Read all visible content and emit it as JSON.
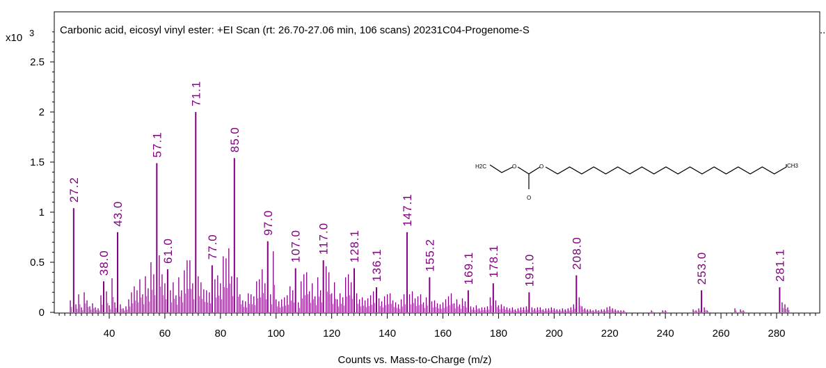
{
  "chart_data": {
    "type": "bar",
    "title": "Carbonic acid, eicosyl vinyl ester: +EI Scan (rt: 26.70-27.06 min, 106 scans) 20231C04-Progenome-S",
    "title_ellipsis": "..",
    "y_multiplier_base": "x10",
    "y_multiplier_exp": "3",
    "xlabel": "Counts vs. Mass-to-Charge (m/z)",
    "xlim": [
      20,
      295
    ],
    "ylim": [
      0,
      2.85
    ],
    "x_ticks": [
      40,
      60,
      80,
      100,
      120,
      140,
      160,
      180,
      200,
      220,
      240,
      260,
      280
    ],
    "x_tick_labels": [
      "40",
      "60",
      "80",
      "100",
      "120",
      "140",
      "160",
      "180",
      "200",
      "220",
      "240",
      "260",
      "280"
    ],
    "y_ticks": [
      0,
      0.5,
      1,
      1.5,
      2,
      2.5
    ],
    "y_tick_labels": [
      "0",
      "0.5",
      "1",
      "1.5",
      "2",
      "2.5"
    ],
    "bar_color": "#800080",
    "labeled_peaks": [
      {
        "mz": 27.2,
        "value": 1.04,
        "label": "27.2"
      },
      {
        "mz": 38.0,
        "value": 0.31,
        "label": "38.0"
      },
      {
        "mz": 43.0,
        "value": 0.8,
        "label": "43.0"
      },
      {
        "mz": 57.1,
        "value": 1.49,
        "label": "57.1"
      },
      {
        "mz": 61.0,
        "value": 0.43,
        "label": "61.0"
      },
      {
        "mz": 71.1,
        "value": 2.0,
        "label": "71.1"
      },
      {
        "mz": 77.0,
        "value": 0.47,
        "label": "77.0"
      },
      {
        "mz": 85.0,
        "value": 1.54,
        "label": "85.0"
      },
      {
        "mz": 97.0,
        "value": 0.71,
        "label": "97.0"
      },
      {
        "mz": 107.0,
        "value": 0.44,
        "label": "107.0"
      },
      {
        "mz": 117.0,
        "value": 0.52,
        "label": "117.0"
      },
      {
        "mz": 128.1,
        "value": 0.44,
        "label": "128.1"
      },
      {
        "mz": 136.1,
        "value": 0.25,
        "label": "136.1"
      },
      {
        "mz": 147.1,
        "value": 0.8,
        "label": "147.1"
      },
      {
        "mz": 155.2,
        "value": 0.35,
        "label": "155.2"
      },
      {
        "mz": 169.1,
        "value": 0.22,
        "label": "169.1"
      },
      {
        "mz": 178.1,
        "value": 0.29,
        "label": "178.1"
      },
      {
        "mz": 191.0,
        "value": 0.2,
        "label": "191.0"
      },
      {
        "mz": 208.0,
        "value": 0.37,
        "label": "208.0"
      },
      {
        "mz": 253.0,
        "value": 0.22,
        "label": "253.0"
      },
      {
        "mz": 281.1,
        "value": 0.25,
        "label": "281.1"
      }
    ],
    "minor_peaks": [
      [
        26,
        0.12
      ],
      [
        28,
        0.08
      ],
      [
        29,
        0.18
      ],
      [
        30,
        0.05
      ],
      [
        31,
        0.2
      ],
      [
        32,
        0.12
      ],
      [
        33,
        0.06
      ],
      [
        34,
        0.09
      ],
      [
        35,
        0.05
      ],
      [
        36,
        0.04
      ],
      [
        37,
        0.17
      ],
      [
        39,
        0.21
      ],
      [
        40,
        0.07
      ],
      [
        41,
        0.34
      ],
      [
        42,
        0.1
      ],
      [
        44,
        0.08
      ],
      [
        45,
        0.04
      ],
      [
        46,
        0.06
      ],
      [
        47,
        0.13
      ],
      [
        48,
        0.2
      ],
      [
        49,
        0.26
      ],
      [
        50,
        0.22
      ],
      [
        51,
        0.33
      ],
      [
        52,
        0.18
      ],
      [
        53,
        0.36
      ],
      [
        54,
        0.24
      ],
      [
        55,
        0.5
      ],
      [
        56,
        0.38
      ],
      [
        58,
        0.57
      ],
      [
        59,
        0.38
      ],
      [
        60,
        0.29
      ],
      [
        62,
        0.22
      ],
      [
        63,
        0.3
      ],
      [
        64,
        0.17
      ],
      [
        65,
        0.35
      ],
      [
        66,
        0.22
      ],
      [
        67,
        0.42
      ],
      [
        68,
        0.52
      ],
      [
        69,
        0.52
      ],
      [
        70,
        0.29
      ],
      [
        72,
        0.36
      ],
      [
        73,
        0.3
      ],
      [
        74,
        0.23
      ],
      [
        75,
        0.22
      ],
      [
        76,
        0.2
      ],
      [
        78,
        0.33
      ],
      [
        79,
        0.37
      ],
      [
        80,
        0.29
      ],
      [
        81,
        0.56
      ],
      [
        82,
        0.54
      ],
      [
        83,
        0.64
      ],
      [
        84,
        0.36
      ],
      [
        86,
        0.35
      ],
      [
        87,
        0.18
      ],
      [
        88,
        0.12
      ],
      [
        89,
        0.11
      ],
      [
        90,
        0.19
      ],
      [
        91,
        0.18
      ],
      [
        92,
        0.16
      ],
      [
        93,
        0.31
      ],
      [
        94,
        0.33
      ],
      [
        95,
        0.43
      ],
      [
        96,
        0.29
      ],
      [
        98,
        0.18
      ],
      [
        99,
        0.61
      ],
      [
        100,
        0.13
      ],
      [
        101,
        0.11
      ],
      [
        102,
        0.13
      ],
      [
        103,
        0.15
      ],
      [
        104,
        0.17
      ],
      [
        105,
        0.26
      ],
      [
        106,
        0.22
      ],
      [
        108,
        0.1
      ],
      [
        109,
        0.31
      ],
      [
        110,
        0.38
      ],
      [
        111,
        0.4
      ],
      [
        112,
        0.21
      ],
      [
        113,
        0.29
      ],
      [
        114,
        0.16
      ],
      [
        115,
        0.35
      ],
      [
        116,
        0.22
      ],
      [
        118,
        0.46
      ],
      [
        119,
        0.4
      ],
      [
        120,
        0.19
      ],
      [
        121,
        0.3
      ],
      [
        122,
        0.13
      ],
      [
        123,
        0.19
      ],
      [
        124,
        0.15
      ],
      [
        125,
        0.35
      ],
      [
        126,
        0.38
      ],
      [
        127,
        0.3
      ],
      [
        129,
        0.19
      ],
      [
        130,
        0.13
      ],
      [
        131,
        0.15
      ],
      [
        132,
        0.12
      ],
      [
        133,
        0.14
      ],
      [
        134,
        0.17
      ],
      [
        135,
        0.21
      ],
      [
        137,
        0.14
      ],
      [
        138,
        0.11
      ],
      [
        139,
        0.16
      ],
      [
        140,
        0.18
      ],
      [
        141,
        0.19
      ],
      [
        142,
        0.12
      ],
      [
        143,
        0.1
      ],
      [
        144,
        0.08
      ],
      [
        145,
        0.13
      ],
      [
        146,
        0.18
      ],
      [
        148,
        0.18
      ],
      [
        149,
        0.21
      ],
      [
        150,
        0.14
      ],
      [
        151,
        0.16
      ],
      [
        152,
        0.18
      ],
      [
        153,
        0.1
      ],
      [
        154,
        0.15
      ],
      [
        156,
        0.11
      ],
      [
        157,
        0.12
      ],
      [
        158,
        0.09
      ],
      [
        159,
        0.08
      ],
      [
        160,
        0.1
      ],
      [
        161,
        0.13
      ],
      [
        162,
        0.16
      ],
      [
        163,
        0.19
      ],
      [
        164,
        0.09
      ],
      [
        165,
        0.13
      ],
      [
        166,
        0.08
      ],
      [
        167,
        0.14
      ],
      [
        168,
        0.11
      ],
      [
        170,
        0.06
      ],
      [
        171,
        0.05
      ],
      [
        172,
        0.07
      ],
      [
        173,
        0.04
      ],
      [
        174,
        0.05
      ],
      [
        175,
        0.05
      ],
      [
        176,
        0.06
      ],
      [
        177,
        0.15
      ],
      [
        179,
        0.12
      ],
      [
        180,
        0.07
      ],
      [
        181,
        0.08
      ],
      [
        182,
        0.06
      ],
      [
        183,
        0.05
      ],
      [
        184,
        0.04
      ],
      [
        185,
        0.05
      ],
      [
        186,
        0.03
      ],
      [
        187,
        0.04
      ],
      [
        188,
        0.05
      ],
      [
        189,
        0.05
      ],
      [
        190,
        0.06
      ],
      [
        192,
        0.05
      ],
      [
        193,
        0.04
      ],
      [
        194,
        0.05
      ],
      [
        195,
        0.05
      ],
      [
        196,
        0.03
      ],
      [
        197,
        0.04
      ],
      [
        198,
        0.04
      ],
      [
        199,
        0.05
      ],
      [
        200,
        0.04
      ],
      [
        201,
        0.03
      ],
      [
        202,
        0.03
      ],
      [
        203,
        0.04
      ],
      [
        204,
        0.03
      ],
      [
        205,
        0.04
      ],
      [
        206,
        0.05
      ],
      [
        207,
        0.08
      ],
      [
        209,
        0.15
      ],
      [
        210,
        0.06
      ],
      [
        211,
        0.04
      ],
      [
        212,
        0.03
      ],
      [
        213,
        0.03
      ],
      [
        214,
        0.02
      ],
      [
        215,
        0.03
      ],
      [
        216,
        0.02
      ],
      [
        217,
        0.03
      ],
      [
        218,
        0.03
      ],
      [
        219,
        0.05
      ],
      [
        220,
        0.06
      ],
      [
        221,
        0.04
      ],
      [
        222,
        0.03
      ],
      [
        223,
        0.02
      ],
      [
        224,
        0.02
      ],
      [
        225,
        0.02
      ],
      [
        235,
        0.02
      ],
      [
        239,
        0.02
      ],
      [
        240,
        0.02
      ],
      [
        250,
        0.03
      ],
      [
        251,
        0.02
      ],
      [
        252,
        0.04
      ],
      [
        254,
        0.05
      ],
      [
        255,
        0.02
      ],
      [
        265,
        0.04
      ],
      [
        267,
        0.03
      ],
      [
        268,
        0.02
      ],
      [
        282,
        0.1
      ],
      [
        283,
        0.08
      ],
      [
        284,
        0.05
      ]
    ]
  }
}
